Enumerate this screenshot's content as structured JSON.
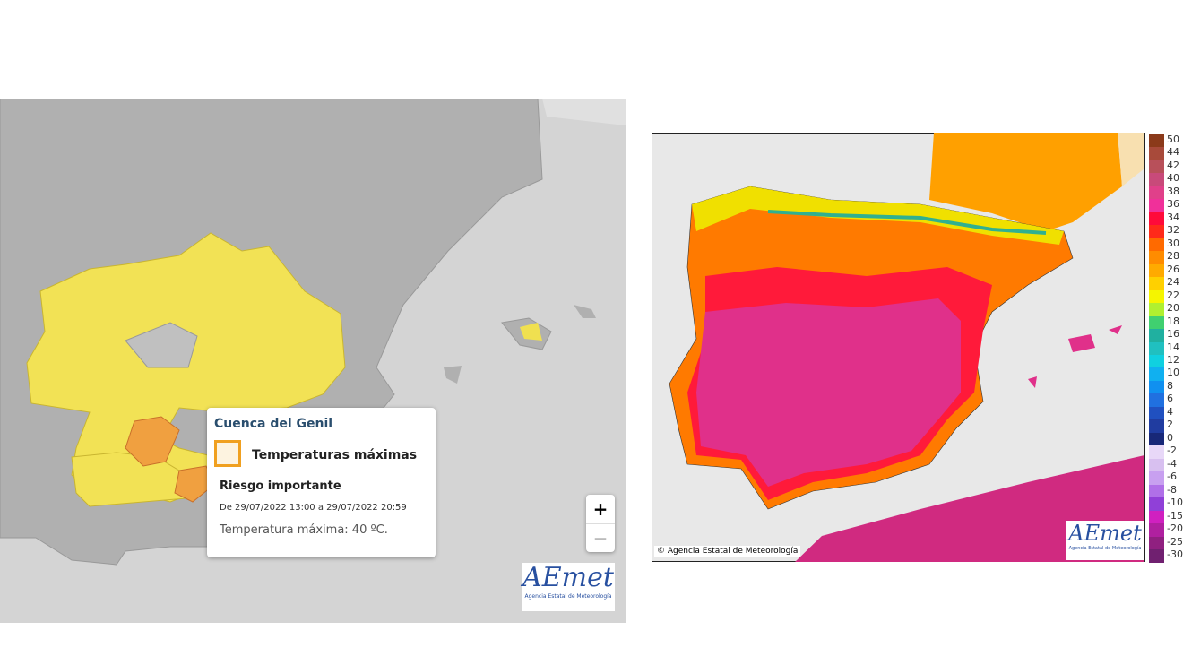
{
  "warning_map": {
    "popup": {
      "title": "Cuenca del Genil",
      "phenomenon": "Temperaturas máximas",
      "level": "Riesgo importante",
      "period": "De 29/07/2022 13:00 a 29/07/2022 20:59",
      "detail": "Temperatura máxima: 40 ºC."
    },
    "zoom": {
      "in": "+",
      "out": "—"
    },
    "logo": {
      "name": "AEmet",
      "agency": "Agencia Estatal de Meteorología"
    }
  },
  "forecast_map": {
    "credit": "© Agencia Estatal de Meteorología",
    "logo": {
      "name": "AEmet",
      "agency": "Agencia Estatal de Meteorología"
    },
    "legend": [
      {
        "value": 50,
        "color": "#8b3a1a"
      },
      {
        "value": 44,
        "color": "#a84a3a"
      },
      {
        "value": 42,
        "color": "#b8505a"
      },
      {
        "value": 40,
        "color": "#c84a7a"
      },
      {
        "value": 38,
        "color": "#e0408a"
      },
      {
        "value": 36,
        "color": "#f0309a"
      },
      {
        "value": 34,
        "color": "#ff0a3a"
      },
      {
        "value": 32,
        "color": "#ff2a1a"
      },
      {
        "value": 30,
        "color": "#ff6a00"
      },
      {
        "value": 28,
        "color": "#ff8c00"
      },
      {
        "value": 26,
        "color": "#ffaa00"
      },
      {
        "value": 24,
        "color": "#ffd000"
      },
      {
        "value": 22,
        "color": "#f5f500"
      },
      {
        "value": 20,
        "color": "#b0f030"
      },
      {
        "value": 18,
        "color": "#40d070"
      },
      {
        "value": 16,
        "color": "#20b0a0"
      },
      {
        "value": 14,
        "color": "#20c0c0"
      },
      {
        "value": 12,
        "color": "#10d0e0"
      },
      {
        "value": 10,
        "color": "#10b0f0"
      },
      {
        "value": 8,
        "color": "#1090f0"
      },
      {
        "value": 6,
        "color": "#2070e0"
      },
      {
        "value": 4,
        "color": "#2050c0"
      },
      {
        "value": 2,
        "color": "#203ca0"
      },
      {
        "value": 0,
        "color": "#182878"
      },
      {
        "value": -2,
        "color": "#e8d8f8"
      },
      {
        "value": -4,
        "color": "#d8c0f0"
      },
      {
        "value": -6,
        "color": "#c8a0f0"
      },
      {
        "value": -8,
        "color": "#b070e8"
      },
      {
        "value": -10,
        "color": "#9040d8"
      },
      {
        "value": -15,
        "color": "#d020c0"
      },
      {
        "value": -20,
        "color": "#b020a0"
      },
      {
        "value": -25,
        "color": "#902080"
      },
      {
        "value": -30,
        "color": "#702070"
      }
    ]
  }
}
